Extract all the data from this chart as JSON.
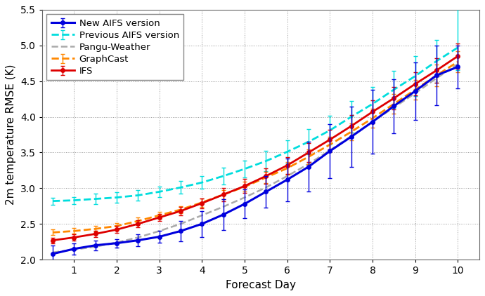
{
  "title": "",
  "xlabel": "Forecast Day",
  "ylabel": "2m temperature RMSE (K)",
  "xlim": [
    0.25,
    10.5
  ],
  "ylim": [
    2.0,
    5.5
  ],
  "yticks": [
    2.0,
    2.5,
    3.0,
    3.5,
    4.0,
    4.5,
    5.0,
    5.5
  ],
  "xticks": [
    1,
    2,
    3,
    4,
    5,
    6,
    7,
    8,
    9,
    10
  ],
  "new_aifs": {
    "x": [
      0.5,
      1.0,
      1.5,
      2.0,
      2.5,
      3.0,
      3.5,
      4.0,
      4.5,
      5.0,
      5.5,
      6.0,
      6.5,
      7.0,
      7.5,
      8.0,
      8.5,
      9.0,
      9.5,
      10.0
    ],
    "y": [
      2.08,
      2.15,
      2.2,
      2.23,
      2.27,
      2.32,
      2.4,
      2.5,
      2.63,
      2.78,
      2.95,
      3.12,
      3.3,
      3.52,
      3.72,
      3.93,
      4.15,
      4.36,
      4.58,
      4.7
    ],
    "yerr_lo": [
      0.12,
      0.08,
      0.07,
      0.06,
      0.08,
      0.08,
      0.14,
      0.18,
      0.22,
      0.2,
      0.22,
      0.3,
      0.35,
      0.38,
      0.42,
      0.45,
      0.38,
      0.4,
      0.42,
      0.3
    ],
    "yerr_hi": [
      0.12,
      0.08,
      0.07,
      0.06,
      0.08,
      0.08,
      0.14,
      0.18,
      0.22,
      0.2,
      0.22,
      0.3,
      0.35,
      0.38,
      0.42,
      0.45,
      0.38,
      0.4,
      0.42,
      0.3
    ],
    "color": "#0000dd",
    "linestyle": "-",
    "linewidth": 2.2,
    "marker": "o",
    "markersize": 4,
    "label": "New AIFS version",
    "zorder": 5
  },
  "prev_aifs": {
    "x": [
      0.5,
      1.0,
      1.5,
      2.0,
      2.5,
      3.0,
      3.5,
      4.0,
      4.5,
      5.0,
      5.5,
      6.0,
      6.5,
      7.0,
      7.5,
      8.0,
      8.5,
      9.0,
      9.5,
      10.0
    ],
    "y": [
      2.82,
      2.83,
      2.85,
      2.87,
      2.9,
      2.95,
      3.01,
      3.08,
      3.17,
      3.27,
      3.38,
      3.51,
      3.65,
      3.81,
      4.0,
      4.18,
      4.38,
      4.57,
      4.78,
      4.97
    ],
    "yerr_lo": [
      0.05,
      0.05,
      0.07,
      0.07,
      0.07,
      0.07,
      0.09,
      0.09,
      0.12,
      0.12,
      0.14,
      0.16,
      0.18,
      0.2,
      0.22,
      0.24,
      0.26,
      0.28,
      0.3,
      0.32
    ],
    "yerr_hi": [
      0.05,
      0.05,
      0.07,
      0.07,
      0.07,
      0.07,
      0.09,
      0.09,
      0.12,
      0.12,
      0.14,
      0.16,
      0.18,
      0.2,
      0.22,
      0.24,
      0.26,
      0.28,
      0.3,
      0.55
    ],
    "color": "#00dddd",
    "linestyle": "--",
    "linewidth": 2.0,
    "marker": "None",
    "markersize": 0,
    "label": "Previous AIFS version",
    "zorder": 3
  },
  "pangu": {
    "x": [
      0.5,
      1.0,
      1.5,
      2.0,
      2.5,
      3.0,
      3.5,
      4.0,
      4.5,
      5.0,
      5.5,
      6.0,
      6.5,
      7.0,
      7.5,
      8.0,
      8.5,
      9.0,
      9.5,
      10.0
    ],
    "y": [
      2.1,
      2.14,
      2.18,
      2.24,
      2.31,
      2.4,
      2.5,
      2.62,
      2.74,
      2.87,
      3.01,
      3.17,
      3.34,
      3.53,
      3.73,
      3.93,
      4.13,
      4.33,
      4.54,
      4.74
    ],
    "color": "#aaaaaa",
    "linestyle": "--",
    "linewidth": 1.8,
    "marker": "None",
    "markersize": 0,
    "label": "Pangu-Weather",
    "zorder": 2
  },
  "graphcast": {
    "x": [
      0.5,
      1.0,
      1.5,
      2.0,
      2.5,
      3.0,
      3.5,
      4.0,
      4.5,
      5.0,
      5.5,
      6.0,
      6.5,
      7.0,
      7.5,
      8.0,
      8.5,
      9.0,
      9.5,
      10.0
    ],
    "y": [
      2.38,
      2.4,
      2.43,
      2.47,
      2.54,
      2.62,
      2.7,
      2.8,
      2.91,
      3.02,
      3.15,
      3.28,
      3.44,
      3.61,
      3.79,
      3.98,
      4.18,
      4.38,
      4.58,
      4.77
    ],
    "yerr_lo": [
      0.04,
      0.04,
      0.04,
      0.04,
      0.05,
      0.05,
      0.05,
      0.06,
      0.06,
      0.07,
      0.08,
      0.09,
      0.1,
      0.11,
      0.12,
      0.13,
      0.14,
      0.14,
      0.15,
      0.15
    ],
    "yerr_hi": [
      0.04,
      0.04,
      0.04,
      0.04,
      0.05,
      0.05,
      0.05,
      0.06,
      0.06,
      0.07,
      0.08,
      0.09,
      0.1,
      0.11,
      0.12,
      0.13,
      0.14,
      0.14,
      0.15,
      0.15
    ],
    "color": "#ff8800",
    "linestyle": "--",
    "linewidth": 2.0,
    "marker": "None",
    "markersize": 0,
    "label": "GraphCast",
    "zorder": 3
  },
  "ifs": {
    "x": [
      0.5,
      1.0,
      1.5,
      2.0,
      2.5,
      3.0,
      3.5,
      4.0,
      4.5,
      5.0,
      5.5,
      6.0,
      6.5,
      7.0,
      7.5,
      8.0,
      8.5,
      9.0,
      9.5,
      10.0
    ],
    "y": [
      2.27,
      2.31,
      2.36,
      2.42,
      2.5,
      2.59,
      2.68,
      2.79,
      2.91,
      3.03,
      3.17,
      3.32,
      3.5,
      3.68,
      3.87,
      4.07,
      4.26,
      4.46,
      4.65,
      4.85
    ],
    "yerr_lo": [
      0.04,
      0.04,
      0.04,
      0.05,
      0.05,
      0.05,
      0.06,
      0.07,
      0.09,
      0.1,
      0.11,
      0.12,
      0.13,
      0.14,
      0.15,
      0.16,
      0.16,
      0.16,
      0.17,
      0.18
    ],
    "yerr_hi": [
      0.04,
      0.04,
      0.04,
      0.05,
      0.05,
      0.05,
      0.06,
      0.07,
      0.09,
      0.1,
      0.11,
      0.12,
      0.13,
      0.14,
      0.15,
      0.16,
      0.16,
      0.16,
      0.17,
      0.18
    ],
    "color": "#dd0000",
    "linestyle": "-",
    "linewidth": 2.0,
    "marker": "o",
    "markersize": 4,
    "label": "IFS",
    "zorder": 4
  },
  "background_color": "#ffffff",
  "legend_fontsize": 9.5,
  "axis_fontsize": 11,
  "tick_fontsize": 10
}
